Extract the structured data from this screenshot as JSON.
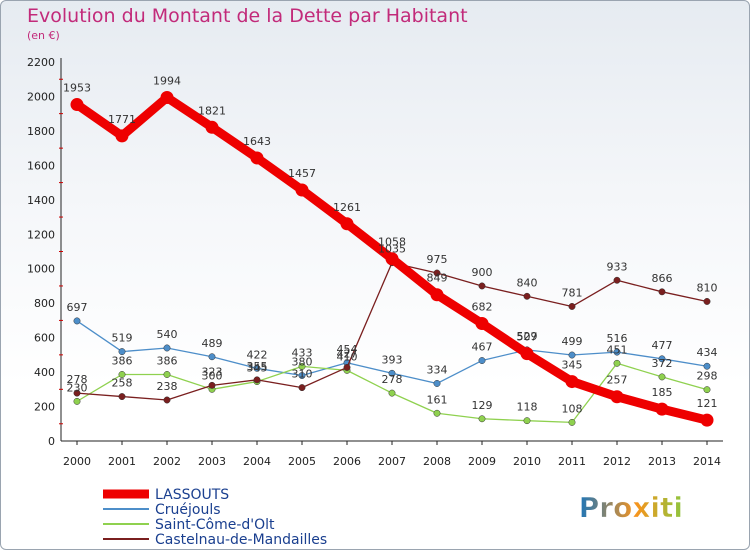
{
  "header": {
    "title": "Evolution du Montant de la Dette par Habitant",
    "subtitle": "(en €)"
  },
  "logo": {
    "text": "Proxiti"
  },
  "chart_data": {
    "type": "line",
    "x": [
      2000,
      2001,
      2002,
      2003,
      2004,
      2005,
      2006,
      2007,
      2008,
      2009,
      2010,
      2011,
      2012,
      2013,
      2014
    ],
    "ylim": [
      0,
      2200
    ],
    "yticks": [
      0,
      200,
      400,
      600,
      800,
      1000,
      1200,
      1400,
      1600,
      1800,
      2000,
      2200
    ],
    "grid": false,
    "legend_position": "bottom-left",
    "series": [
      {
        "name": "LASSOUTS",
        "color": "#ee0000",
        "values": [
          1953,
          1771,
          1994,
          1821,
          1643,
          1457,
          1261,
          1058,
          849,
          682,
          507,
          345,
          257,
          185,
          121
        ]
      },
      {
        "name": "Cruéjouls",
        "color": "#4d8ec9",
        "values": [
          697,
          519,
          540,
          489,
          422,
          380,
          454,
          393,
          334,
          467,
          529,
          499,
          516,
          477,
          434
        ]
      },
      {
        "name": "Saint-Côme-d'Olt",
        "color": "#8fd14f",
        "values": [
          230,
          386,
          386,
          300,
          345,
          433,
          410,
          278,
          161,
          129,
          118,
          108,
          451,
          372,
          298
        ]
      },
      {
        "name": "Castelnau-de-Mandailles",
        "color": "#7a1f1f",
        "values": [
          278,
          258,
          238,
          323,
          355,
          310,
          427,
          1035,
          975,
          900,
          840,
          781,
          933,
          866,
          810
        ]
      }
    ]
  }
}
